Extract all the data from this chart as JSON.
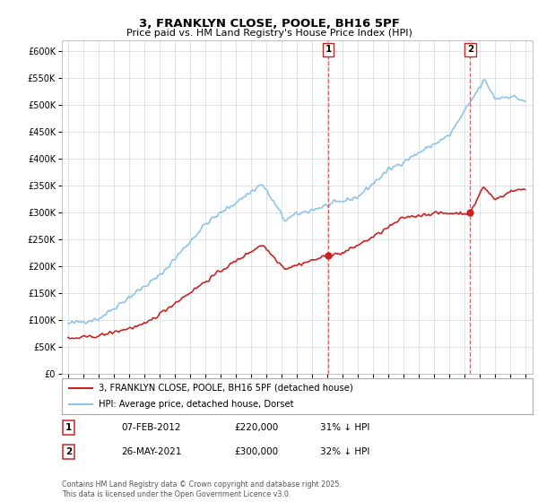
{
  "title": "3, FRANKLYN CLOSE, POOLE, BH16 5PF",
  "subtitle": "Price paid vs. HM Land Registry's House Price Index (HPI)",
  "hpi_color": "#8ec4e8",
  "price_color": "#cc2222",
  "marker_color": "#cc2222",
  "background_color": "#ffffff",
  "grid_color": "#d0d8e4",
  "ylim": [
    0,
    620000
  ],
  "yticks": [
    0,
    50000,
    100000,
    150000,
    200000,
    250000,
    300000,
    350000,
    400000,
    450000,
    500000,
    550000,
    600000
  ],
  "xlim_start": 1994.6,
  "xlim_end": 2025.5,
  "sale1_x": 2012.08,
  "sale1_y": 220000,
  "sale2_x": 2021.4,
  "sale2_y": 300000,
  "legend_line1": "3, FRANKLYN CLOSE, POOLE, BH16 5PF (detached house)",
  "legend_line2": "HPI: Average price, detached house, Dorset",
  "footer": "Contains HM Land Registry data © Crown copyright and database right 2025.\nThis data is licensed under the Open Government Licence v3.0.",
  "table_rows": [
    {
      "num": "1",
      "date": "07-FEB-2012",
      "price": "£220,000",
      "change": "31% ↓ HPI"
    },
    {
      "num": "2",
      "date": "26-MAY-2021",
      "price": "£300,000",
      "change": "32% ↓ HPI"
    }
  ]
}
